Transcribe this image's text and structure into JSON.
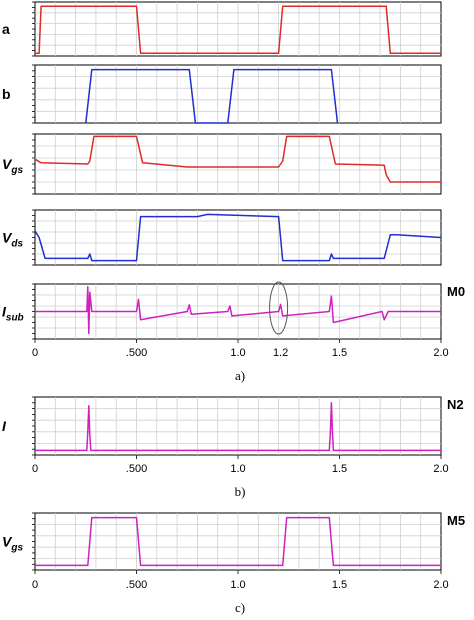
{
  "chart_data": [
    {
      "type": "line",
      "panel": "a",
      "caption": "a)",
      "x_ticks": [
        "0",
        ".500",
        "1.0",
        "1.5",
        "2.0"
      ],
      "x_tick_values": [
        0,
        0.5,
        1.0,
        1.5,
        2.0
      ],
      "xlim": [
        0,
        2.0
      ],
      "annotation": "1.2",
      "subplots": [
        {
          "id": "a",
          "label": "a",
          "sub": "",
          "tag": "",
          "color": "#e02a2a",
          "ylim": [
            0,
            1
          ],
          "x": [
            0,
            0.02,
            0.03,
            0.5,
            0.52,
            1.2,
            1.22,
            1.73,
            1.75,
            2.0
          ],
          "y": [
            0.05,
            0.05,
            0.92,
            0.92,
            0.05,
            0.05,
            0.92,
            0.92,
            0.05,
            0.05
          ]
        },
        {
          "id": "b",
          "label": "b",
          "sub": "",
          "tag": "",
          "color": "#1f2fd0",
          "ylim": [
            0,
            1
          ],
          "x": [
            0.25,
            0.28,
            0.76,
            0.79,
            0.95,
            0.98,
            1.46,
            1.49
          ],
          "y": [
            0.0,
            0.92,
            0.92,
            0.0,
            0.0,
            0.92,
            0.92,
            0.0
          ]
        },
        {
          "id": "vgs",
          "label": "V",
          "sub": "gs",
          "tag": "",
          "color": "#e02a2a",
          "ylim": [
            0,
            1
          ],
          "x": [
            0,
            0.03,
            0.26,
            0.27,
            0.29,
            0.5,
            0.53,
            0.75,
            1.2,
            1.22,
            1.24,
            1.45,
            1.48,
            1.72,
            1.73,
            1.75,
            2.0
          ],
          "y": [
            0.58,
            0.52,
            0.5,
            0.55,
            0.96,
            0.96,
            0.52,
            0.45,
            0.45,
            0.55,
            0.96,
            0.96,
            0.5,
            0.48,
            0.32,
            0.2,
            0.2
          ]
        },
        {
          "id": "vds",
          "label": "V",
          "sub": "ds",
          "tag": "",
          "color": "#1f2fd0",
          "ylim": [
            0,
            1
          ],
          "x": [
            0,
            0.02,
            0.05,
            0.26,
            0.27,
            0.28,
            0.5,
            0.52,
            0.55,
            0.8,
            0.85,
            1.2,
            1.22,
            1.45,
            1.46,
            1.47,
            1.72,
            1.75,
            1.78,
            2.0
          ],
          "y": [
            0.62,
            0.5,
            0.12,
            0.12,
            0.2,
            0.08,
            0.08,
            0.88,
            0.88,
            0.88,
            0.92,
            0.88,
            0.08,
            0.08,
            0.2,
            0.12,
            0.12,
            0.55,
            0.55,
            0.5
          ]
        },
        {
          "id": "isub",
          "label": "I",
          "sub": "sub",
          "tag": "M0",
          "color": "#d020c0",
          "ylim": [
            0,
            1
          ],
          "x": [
            0,
            0.255,
            0.26,
            0.265,
            0.27,
            0.28,
            0.5,
            0.51,
            0.52,
            0.75,
            0.76,
            0.77,
            0.95,
            0.96,
            0.97,
            1.2,
            1.21,
            1.22,
            1.45,
            1.46,
            1.47,
            1.71,
            1.72,
            1.74,
            2.0
          ],
          "y": [
            0.5,
            0.5,
            0.95,
            0.1,
            0.85,
            0.5,
            0.5,
            0.72,
            0.35,
            0.5,
            0.62,
            0.45,
            0.5,
            0.6,
            0.42,
            0.5,
            0.63,
            0.42,
            0.5,
            0.78,
            0.3,
            0.5,
            0.35,
            0.5,
            0.5
          ]
        }
      ]
    },
    {
      "type": "line",
      "panel": "b",
      "caption": "b)",
      "x_ticks": [
        "0",
        ".500",
        "1.0",
        "1.5",
        "2.0"
      ],
      "x_tick_values": [
        0,
        0.5,
        1.0,
        1.5,
        2.0
      ],
      "xlim": [
        0,
        2.0
      ],
      "subplots": [
        {
          "id": "i",
          "label": "I",
          "sub": "",
          "tag": "N2",
          "color": "#d020c0",
          "ylim": [
            0,
            1
          ],
          "x": [
            0,
            0.255,
            0.26,
            0.265,
            0.27,
            0.275,
            1.45,
            1.455,
            1.46,
            1.465,
            1.47,
            2.0
          ],
          "y": [
            0.08,
            0.08,
            0.4,
            0.85,
            0.35,
            0.08,
            0.08,
            0.4,
            0.9,
            0.4,
            0.08,
            0.08
          ]
        }
      ]
    },
    {
      "type": "line",
      "panel": "c",
      "caption": "c)",
      "x_ticks": [
        "0",
        ".500",
        "1.0",
        "1.5",
        "2.0"
      ],
      "x_tick_values": [
        0,
        0.5,
        1.0,
        1.5,
        2.0
      ],
      "xlim": [
        0,
        2.0
      ],
      "subplots": [
        {
          "id": "vgs2",
          "label": "V",
          "sub": "gs",
          "tag": "M5",
          "color": "#d020c0",
          "ylim": [
            0,
            1
          ],
          "x": [
            0,
            0.26,
            0.28,
            0.5,
            0.52,
            1.22,
            1.24,
            1.45,
            1.47,
            2.0
          ],
          "y": [
            0.08,
            0.08,
            0.92,
            0.92,
            0.08,
            0.08,
            0.92,
            0.92,
            0.08,
            0.08
          ]
        }
      ]
    }
  ]
}
